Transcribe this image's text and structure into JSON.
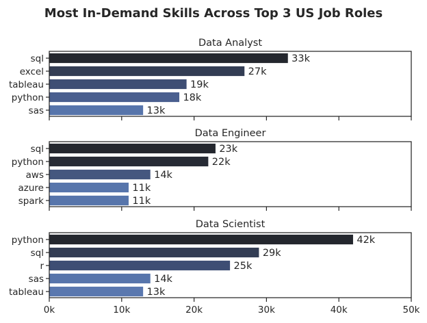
{
  "figure_title": "Most In-Demand Skills Across Top 3 US Job Roles",
  "chart_data": [
    {
      "type": "bar",
      "orientation": "horizontal",
      "title": "Data Analyst",
      "categories": [
        "sql",
        "excel",
        "tableau",
        "python",
        "sas"
      ],
      "values": [
        33000,
        27000,
        19000,
        18000,
        13000
      ],
      "data_labels": [
        "33k",
        "27k",
        "19k",
        "18k",
        "13k"
      ],
      "colors": [
        "#24272e",
        "#333d54",
        "#3e4e74",
        "#4a5f8f",
        "#5775ab"
      ],
      "xlim": [
        0,
        50000
      ],
      "xlabel": "",
      "ylabel": ""
    },
    {
      "type": "bar",
      "orientation": "horizontal",
      "title": "Data Engineer",
      "categories": [
        "sql",
        "python",
        "aws",
        "azure",
        "spark"
      ],
      "values": [
        23000,
        22000,
        14000,
        11000,
        11000
      ],
      "data_labels": [
        "23k",
        "22k",
        "14k",
        "11k",
        "11k"
      ],
      "colors": [
        "#24272e",
        "#272b35",
        "#45577f",
        "#5775ab",
        "#5775ab"
      ],
      "xlim": [
        0,
        50000
      ],
      "xlabel": "",
      "ylabel": ""
    },
    {
      "type": "bar",
      "orientation": "horizontal",
      "title": "Data Scientist",
      "categories": [
        "python",
        "sql",
        "r",
        "sas",
        "tableau"
      ],
      "values": [
        42000,
        29000,
        25000,
        14000,
        13000
      ],
      "data_labels": [
        "42k",
        "29k",
        "25k",
        "14k",
        "13k"
      ],
      "colors": [
        "#24272e",
        "#333d54",
        "#3e4e74",
        "#5775ab",
        "#5a78af"
      ],
      "xlim": [
        0,
        50000
      ],
      "xlabel": "",
      "ylabel": ""
    }
  ],
  "x_ticks": {
    "values": [
      0,
      10000,
      20000,
      30000,
      40000,
      50000
    ],
    "labels": [
      "0k",
      "10k",
      "20k",
      "30k",
      "40k",
      "50k"
    ]
  }
}
